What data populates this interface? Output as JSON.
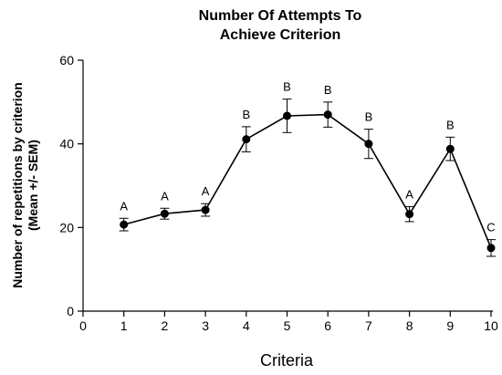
{
  "chart_data": {
    "type": "line",
    "title": [
      "Number Of Attempts To",
      "Achieve Criterion"
    ],
    "xlabel": "Criteria",
    "ylabel": [
      "Number of repetitions by criterion",
      "(Mean +/- SEM)"
    ],
    "xlim": [
      0,
      10
    ],
    "ylim": [
      0,
      60
    ],
    "x_ticks": [
      0,
      1,
      2,
      3,
      4,
      5,
      6,
      7,
      8,
      9,
      10
    ],
    "y_ticks": [
      0,
      20,
      40,
      60
    ],
    "grid": false,
    "series": [
      {
        "x": [
          1,
          2,
          3,
          4,
          5,
          6,
          7,
          8,
          9,
          10
        ],
        "y": [
          20.7,
          23.3,
          24.2,
          41.1,
          46.7,
          47.0,
          40.0,
          23.2,
          38.8,
          15.1
        ],
        "sem": [
          1.5,
          1.3,
          1.5,
          3.0,
          4.0,
          3.0,
          3.5,
          1.8,
          2.8,
          2.0
        ],
        "labels": [
          "A",
          "A",
          "A",
          "B",
          "B",
          "B",
          "B",
          "A",
          "B",
          "C"
        ]
      }
    ]
  }
}
